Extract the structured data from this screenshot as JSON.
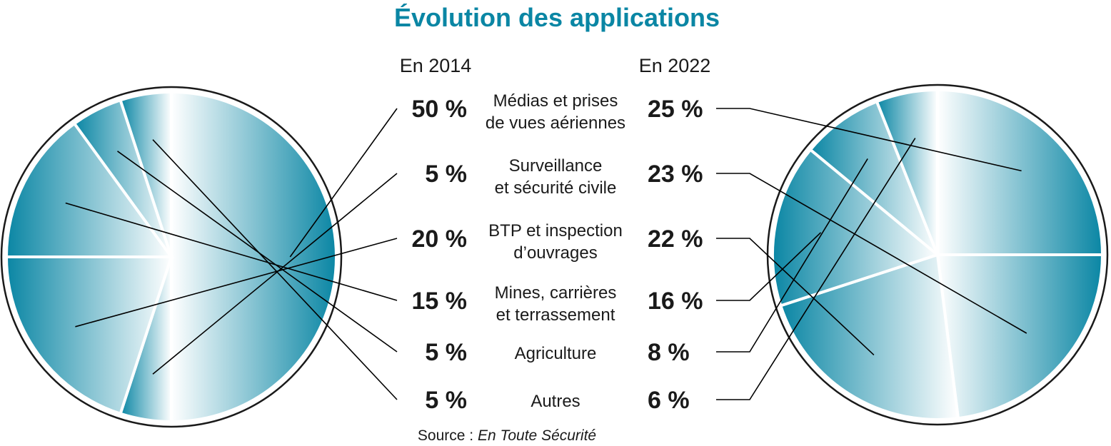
{
  "chart_data": {
    "type": "pie",
    "title": "Évolution des applications",
    "source_label": "Source : ",
    "source_name": "En Toute Sécurité",
    "colors": {
      "title": "#0a86a4",
      "accent": "#1a8aa6",
      "dark": "#1a1a1a"
    },
    "categories": [
      {
        "label_lines": [
          "Médias et prises",
          "de vues aériennes"
        ],
        "v2014": 50,
        "l2014": "50 %",
        "v2022": 25,
        "l2022": "25 %",
        "highlight": false
      },
      {
        "label_lines": [
          "Surveillance",
          "et sécurité civile"
        ],
        "v2014": 5,
        "l2014": "5 %",
        "v2022": 23,
        "l2022": "23 %",
        "highlight": true
      },
      {
        "label_lines": [
          "BTP et inspection",
          "d’ouvrages"
        ],
        "v2014": 20,
        "l2014": "20 %",
        "v2022": 22,
        "l2022": "22 %",
        "highlight": false
      },
      {
        "label_lines": [
          "Mines, carrières",
          "et terrassement"
        ],
        "v2014": 15,
        "l2014": "15 %",
        "v2022": 16,
        "l2022": "16 %",
        "highlight": false
      },
      {
        "label_lines": [
          "Agriculture"
        ],
        "v2014": 5,
        "l2014": "5 %",
        "v2022": 8,
        "l2022": "8 %",
        "highlight": false
      },
      {
        "label_lines": [
          "Autres"
        ],
        "v2014": 5,
        "l2014": "5 %",
        "v2022": 6,
        "l2022": "6 %",
        "highlight": false
      }
    ],
    "series": [
      {
        "name": "En 2014",
        "key": "v2014"
      },
      {
        "name": "En 2022",
        "key": "v2022"
      }
    ]
  }
}
